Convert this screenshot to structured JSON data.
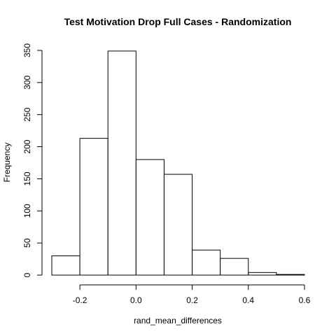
{
  "chart_data": {
    "type": "bar",
    "title": "Test Motivation Drop Full Cases - Randomization",
    "xlabel": "rand_mean_differences",
    "ylabel": "Frequency",
    "bin_edges": [
      -0.3,
      -0.2,
      -0.1,
      0.0,
      0.1,
      0.2,
      0.3,
      0.4,
      0.5,
      0.6
    ],
    "values": [
      30,
      213,
      349,
      180,
      157,
      39,
      26,
      4,
      1
    ],
    "xlim": [
      -0.3,
      0.6
    ],
    "ylim": [
      0,
      350
    ],
    "x_ticks": [
      -0.2,
      0.0,
      0.2,
      0.4,
      0.6
    ],
    "x_tick_labels": [
      "-0.2",
      "0.0",
      "0.2",
      "0.4",
      "0.6"
    ],
    "y_ticks": [
      0,
      50,
      100,
      150,
      200,
      250,
      300,
      350
    ],
    "y_tick_labels": [
      "0",
      "50",
      "100",
      "150",
      "200",
      "250",
      "300",
      "350"
    ],
    "grid": false,
    "colors": {
      "bar_fill": "#ffffff",
      "bar_stroke": "#000000"
    }
  }
}
